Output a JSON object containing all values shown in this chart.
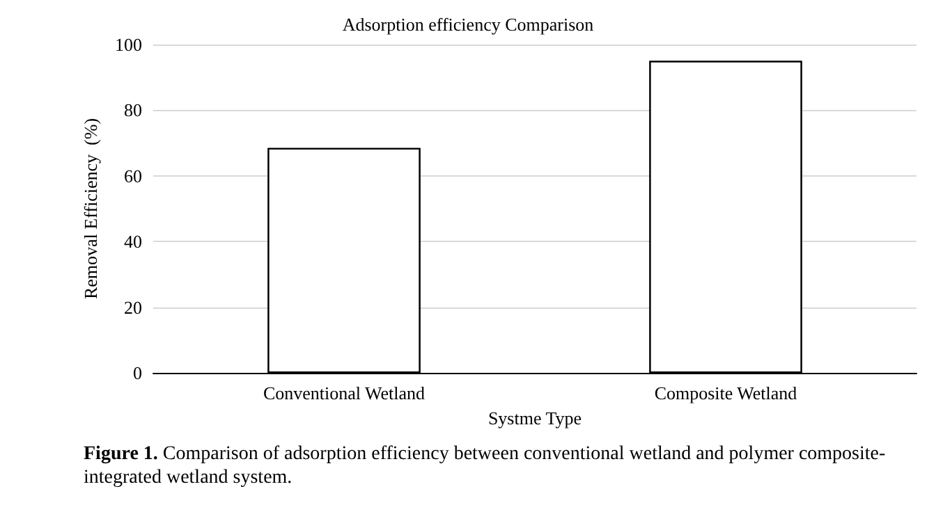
{
  "chart_data": {
    "type": "bar",
    "title": "Adsorption efficiency Comparison",
    "xlabel": "Systme Type",
    "ylabel": "Removal Efficiency  (%)",
    "categories": [
      "Conventional Wetland",
      "Composite Wetland"
    ],
    "series": [
      {
        "color": "#ffffff",
        "values": [
          68.5,
          95
        ]
      }
    ],
    "ylim": [
      0,
      100
    ],
    "yticks": [
      0,
      20,
      40,
      60,
      80,
      100
    ],
    "grid": "y",
    "annotations": [
      "Figure 1.",
      "Comparison of adsorption efficiency between conventional wetland and polymer composite-integrated wetland system."
    ]
  }
}
